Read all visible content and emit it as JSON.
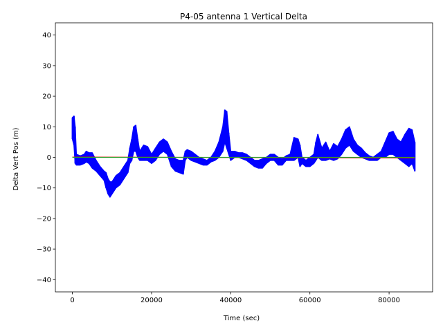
{
  "chart_data": {
    "type": "line",
    "title": "P4-05 antenna 1 Vertical Delta",
    "xlabel": "Time (sec)",
    "ylabel": "Delta Vert Pos (m)",
    "xlim": [
      -4300,
      91000
    ],
    "ylim": [
      -44,
      44
    ],
    "xticks": [
      0,
      20000,
      40000,
      60000,
      80000
    ],
    "xtick_labels": [
      "0",
      "20000",
      "40000",
      "60000",
      "80000"
    ],
    "yticks": [
      -40,
      -30,
      -20,
      -10,
      0,
      10,
      20,
      30,
      40
    ],
    "ytick_labels": [
      "−40",
      "−30",
      "−20",
      "−10",
      "0",
      "10",
      "20",
      "30",
      "40"
    ],
    "grid": false,
    "series": [
      {
        "color": "#0000ff",
        "style": "errorbar-band",
        "points": [
          {
            "x": 0,
            "lo": 6,
            "hi": 13
          },
          {
            "x": 400,
            "lo": 4,
            "hi": 13.5
          },
          {
            "x": 700,
            "lo": -2,
            "hi": 10
          },
          {
            "x": 1000,
            "lo": -2.5,
            "hi": 1
          },
          {
            "x": 2000,
            "lo": -2.5,
            "hi": 0.5
          },
          {
            "x": 3000,
            "lo": -2,
            "hi": 1
          },
          {
            "x": 3500,
            "lo": -1.5,
            "hi": 2
          },
          {
            "x": 4200,
            "lo": -2,
            "hi": 1.5
          },
          {
            "x": 5000,
            "lo": -3.5,
            "hi": 1.5
          },
          {
            "x": 6000,
            "lo": -4.5,
            "hi": -1
          },
          {
            "x": 7000,
            "lo": -6,
            "hi": -3
          },
          {
            "x": 8000,
            "lo": -7.5,
            "hi": -4.5
          },
          {
            "x": 8500,
            "lo": -10,
            "hi": -5
          },
          {
            "x": 9000,
            "lo": -12,
            "hi": -7
          },
          {
            "x": 9500,
            "lo": -13,
            "hi": -8
          },
          {
            "x": 10000,
            "lo": -12,
            "hi": -8
          },
          {
            "x": 11000,
            "lo": -10,
            "hi": -6
          },
          {
            "x": 12000,
            "lo": -9,
            "hi": -5
          },
          {
            "x": 13000,
            "lo": -7,
            "hi": -3
          },
          {
            "x": 14000,
            "lo": -5,
            "hi": -1
          },
          {
            "x": 14500,
            "lo": -2,
            "hi": 3
          },
          {
            "x": 15000,
            "lo": -1,
            "hi": 6
          },
          {
            "x": 15500,
            "lo": 2,
            "hi": 10
          },
          {
            "x": 16000,
            "lo": 2,
            "hi": 10.5
          },
          {
            "x": 16500,
            "lo": 0,
            "hi": 6
          },
          {
            "x": 17000,
            "lo": -1,
            "hi": 2
          },
          {
            "x": 18000,
            "lo": -1,
            "hi": 4
          },
          {
            "x": 19000,
            "lo": -1,
            "hi": 3.5
          },
          {
            "x": 20000,
            "lo": -2,
            "hi": 1
          },
          {
            "x": 21000,
            "lo": -1,
            "hi": 3
          },
          {
            "x": 22000,
            "lo": 1,
            "hi": 5
          },
          {
            "x": 23000,
            "lo": 2,
            "hi": 6
          },
          {
            "x": 24000,
            "lo": 1,
            "hi": 5
          },
          {
            "x": 25000,
            "lo": -3,
            "hi": 2
          },
          {
            "x": 26000,
            "lo": -4.5,
            "hi": -0.5
          },
          {
            "x": 27000,
            "lo": -5,
            "hi": -1
          },
          {
            "x": 28000,
            "lo": -5.5,
            "hi": -1
          },
          {
            "x": 28500,
            "lo": -1,
            "hi": 2
          },
          {
            "x": 29000,
            "lo": 0,
            "hi": 2.5
          },
          {
            "x": 30000,
            "lo": -1,
            "hi": 2
          },
          {
            "x": 31000,
            "lo": -1.5,
            "hi": 1
          },
          {
            "x": 32000,
            "lo": -2,
            "hi": 0
          },
          {
            "x": 33000,
            "lo": -2.5,
            "hi": -0.5
          },
          {
            "x": 34000,
            "lo": -2.5,
            "hi": -1
          },
          {
            "x": 35000,
            "lo": -1.5,
            "hi": 0
          },
          {
            "x": 36000,
            "lo": -1,
            "hi": 2
          },
          {
            "x": 37000,
            "lo": 0,
            "hi": 5
          },
          {
            "x": 38000,
            "lo": 2,
            "hi": 10
          },
          {
            "x": 38500,
            "lo": 5,
            "hi": 15.5
          },
          {
            "x": 39000,
            "lo": 3,
            "hi": 15
          },
          {
            "x": 39500,
            "lo": 1,
            "hi": 8
          },
          {
            "x": 40000,
            "lo": -1,
            "hi": 2
          },
          {
            "x": 41000,
            "lo": 0,
            "hi": 2
          },
          {
            "x": 42000,
            "lo": 0,
            "hi": 1.5
          },
          {
            "x": 43000,
            "lo": -0.5,
            "hi": 1.5
          },
          {
            "x": 44000,
            "lo": -1,
            "hi": 1
          },
          {
            "x": 45000,
            "lo": -2,
            "hi": 0
          },
          {
            "x": 46000,
            "lo": -3,
            "hi": -1
          },
          {
            "x": 47000,
            "lo": -3.5,
            "hi": -1
          },
          {
            "x": 48000,
            "lo": -3.5,
            "hi": -0.5
          },
          {
            "x": 49000,
            "lo": -2,
            "hi": 0
          },
          {
            "x": 50000,
            "lo": -1,
            "hi": 1
          },
          {
            "x": 51000,
            "lo": -1,
            "hi": 1
          },
          {
            "x": 52000,
            "lo": -2.5,
            "hi": 0
          },
          {
            "x": 53000,
            "lo": -2.5,
            "hi": -0.5
          },
          {
            "x": 54000,
            "lo": -1,
            "hi": 0.5
          },
          {
            "x": 55000,
            "lo": -1,
            "hi": 1
          },
          {
            "x": 56000,
            "lo": -1,
            "hi": 6.5
          },
          {
            "x": 57000,
            "lo": 0,
            "hi": 6
          },
          {
            "x": 57500,
            "lo": -3,
            "hi": 4
          },
          {
            "x": 58000,
            "lo": -2,
            "hi": 0
          },
          {
            "x": 59000,
            "lo": -3,
            "hi": -1
          },
          {
            "x": 60000,
            "lo": -3,
            "hi": 0
          },
          {
            "x": 61000,
            "lo": -2,
            "hi": 1
          },
          {
            "x": 61500,
            "lo": -1,
            "hi": 5
          },
          {
            "x": 62000,
            "lo": 0,
            "hi": 7.5
          },
          {
            "x": 63000,
            "lo": -1,
            "hi": 3
          },
          {
            "x": 64000,
            "lo": -1,
            "hi": 5
          },
          {
            "x": 65000,
            "lo": -0.5,
            "hi": 2
          },
          {
            "x": 66000,
            "lo": -1,
            "hi": 4.5
          },
          {
            "x": 67000,
            "lo": -0.5,
            "hi": 3.5
          },
          {
            "x": 68000,
            "lo": 1,
            "hi": 6
          },
          {
            "x": 69000,
            "lo": 3,
            "hi": 9
          },
          {
            "x": 70000,
            "lo": 4,
            "hi": 10
          },
          {
            "x": 71000,
            "lo": 2,
            "hi": 6
          },
          {
            "x": 72000,
            "lo": 1,
            "hi": 4
          },
          {
            "x": 73000,
            "lo": 0,
            "hi": 3
          },
          {
            "x": 74000,
            "lo": -0.5,
            "hi": 1.5
          },
          {
            "x": 75000,
            "lo": -1,
            "hi": 0.5
          },
          {
            "x": 76000,
            "lo": -1,
            "hi": 0
          },
          {
            "x": 77000,
            "lo": -1,
            "hi": 1
          },
          {
            "x": 78000,
            "lo": 0,
            "hi": 2
          },
          {
            "x": 79000,
            "lo": 0,
            "hi": 5
          },
          {
            "x": 80000,
            "lo": 1,
            "hi": 8
          },
          {
            "x": 81000,
            "lo": 1,
            "hi": 8.5
          },
          {
            "x": 82000,
            "lo": 0,
            "hi": 6
          },
          {
            "x": 83000,
            "lo": -1,
            "hi": 5
          },
          {
            "x": 84000,
            "lo": -2,
            "hi": 7.5
          },
          {
            "x": 85000,
            "lo": -3,
            "hi": 9.5
          },
          {
            "x": 85800,
            "lo": -2,
            "hi": 9
          },
          {
            "x": 86500,
            "lo": -4.5,
            "hi": 5
          }
        ]
      },
      {
        "color": "#ff0000",
        "style": "line",
        "points": [
          [
            0,
            0.1
          ],
          [
            86500,
            -0.2
          ]
        ]
      },
      {
        "color": "#2ca02c",
        "style": "line",
        "points": [
          [
            0,
            0.0
          ],
          [
            86500,
            0.0
          ]
        ]
      }
    ]
  }
}
